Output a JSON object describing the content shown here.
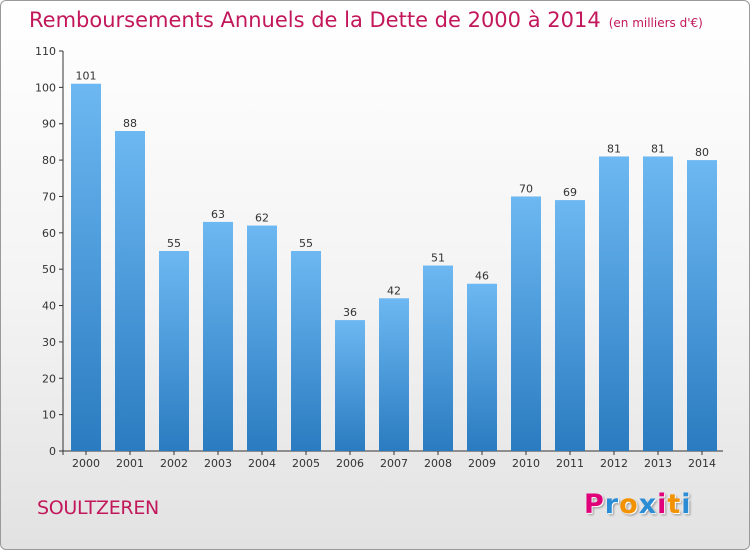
{
  "chart_data": {
    "type": "bar",
    "title": "Remboursements Annuels de la Dette de 2000 à 2014",
    "unit_note": "(en milliers d'€)",
    "categories": [
      "2000",
      "2001",
      "2002",
      "2003",
      "2004",
      "2005",
      "2006",
      "2007",
      "2008",
      "2009",
      "2010",
      "2011",
      "2012",
      "2013",
      "2014"
    ],
    "values": [
      101,
      88,
      55,
      63,
      62,
      55,
      36,
      42,
      51,
      46,
      70,
      69,
      81,
      81,
      80
    ],
    "value_labels": [
      "101",
      "88",
      "55",
      "63",
      "62",
      "55",
      "36",
      "42",
      "51",
      "46",
      "70",
      "69",
      "81",
      "81",
      "80"
    ],
    "y_ticks": [
      "0",
      "10",
      "20",
      "30",
      "40",
      "50",
      "60",
      "70",
      "80",
      "90",
      "100",
      "110"
    ],
    "ylim": [
      0,
      110
    ],
    "xlabel": "",
    "ylabel": "",
    "grid": false,
    "colors": {
      "bar_top": "#6db8f2",
      "bar_bottom": "#2a7bc0",
      "title": "#c2185b"
    }
  },
  "location": "SOULTZEREN",
  "logo": {
    "letters": [
      "P",
      "r",
      "o",
      "x",
      "i",
      "t",
      "i"
    ],
    "colors": [
      "#e0007a",
      "#2b8cd6",
      "#f39200",
      "#2b8cd6",
      "#e0007a",
      "#f39200",
      "#2b8cd6"
    ]
  }
}
